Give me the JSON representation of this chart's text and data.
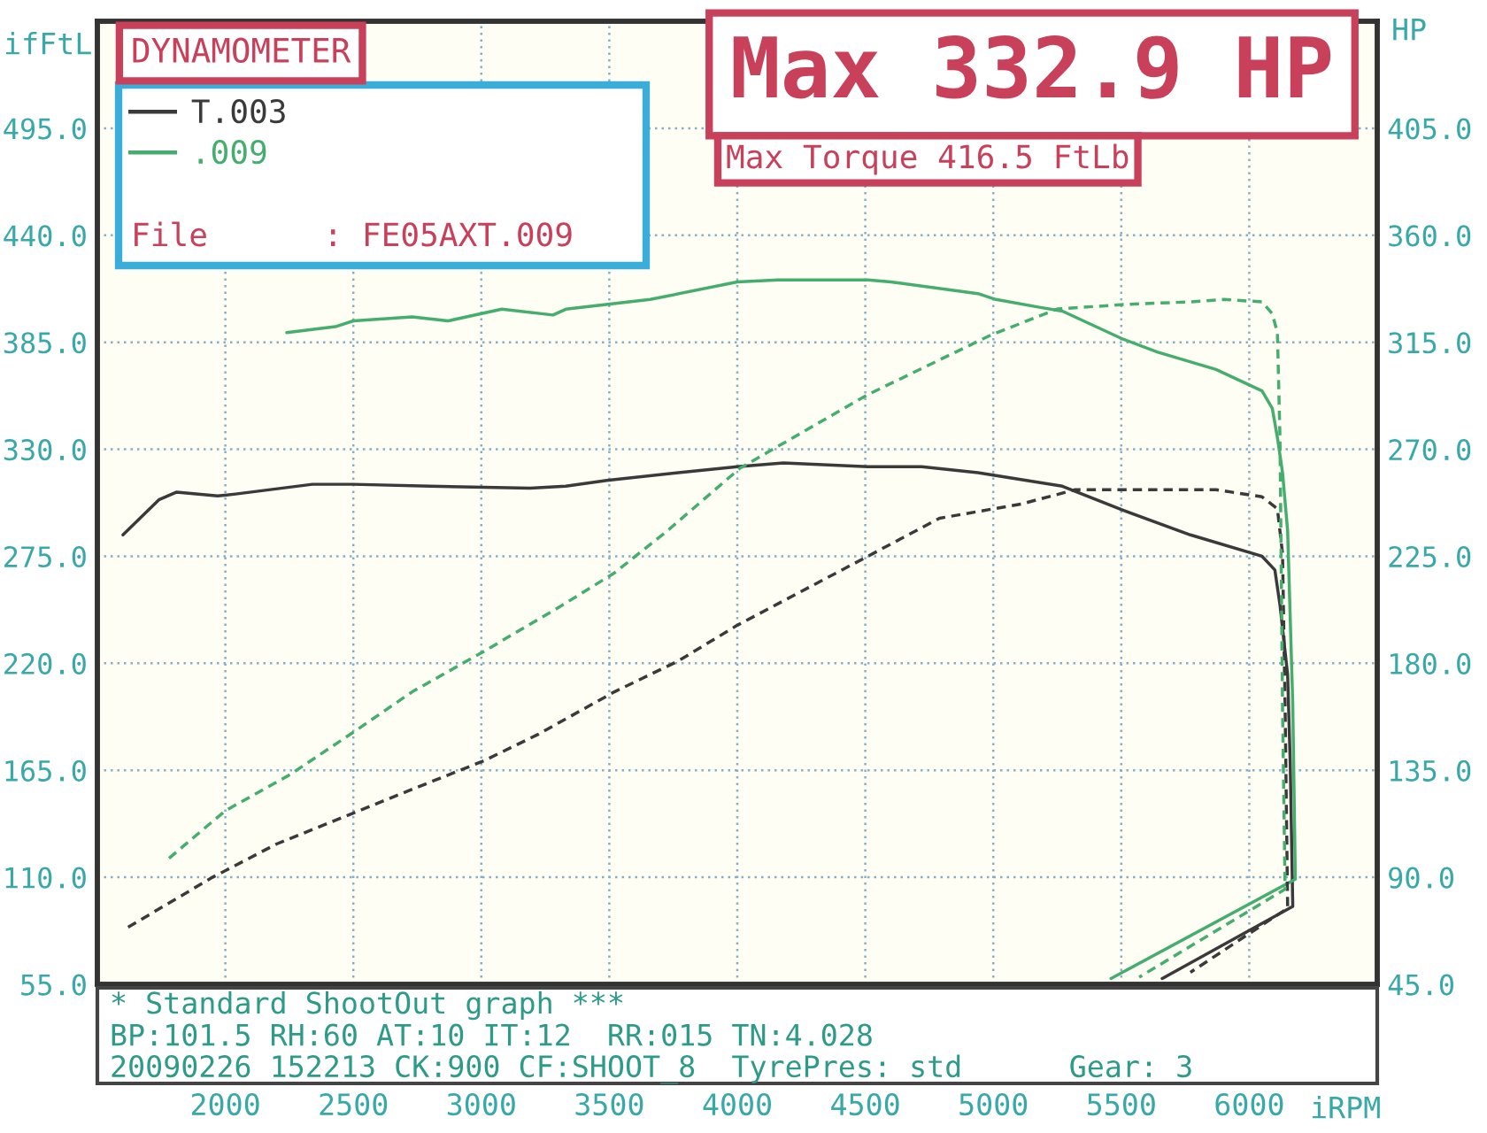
{
  "chart_data": {
    "type": "line",
    "title": "DYNAMOMETER",
    "xlabel": "iRPM",
    "ylabel": "ifFtL",
    "y2label": "HP",
    "xlim": [
      1500,
      6500
    ],
    "xticks": [
      2000,
      2500,
      3000,
      3500,
      4000,
      4500,
      5000,
      5500,
      6000
    ],
    "ylim": [
      55,
      550
    ],
    "yticks": [
      {
        "value": 55,
        "label": "55.0"
      },
      {
        "value": 110,
        "label": "110.0"
      },
      {
        "value": 165,
        "label": "165.0"
      },
      {
        "value": 220,
        "label": "220.0"
      },
      {
        "value": 275,
        "label": "275.0"
      },
      {
        "value": 330,
        "label": "330.0"
      },
      {
        "value": 385,
        "label": "385.0"
      },
      {
        "value": 440,
        "label": "440.0"
      },
      {
        "value": 495,
        "label": "495.0"
      }
    ],
    "y2lim": [
      45,
      450
    ],
    "y2ticks": [
      {
        "value": 45,
        "label": "45.0"
      },
      {
        "value": 90,
        "label": "90.0"
      },
      {
        "value": 135,
        "label": "135.0"
      },
      {
        "value": 180,
        "label": "180.0"
      },
      {
        "value": 225,
        "label": "225.0"
      },
      {
        "value": 270,
        "label": "270.0"
      },
      {
        "value": 315,
        "label": "315.0"
      },
      {
        "value": 360,
        "label": "360.0"
      },
      {
        "value": 405,
        "label": "405.0"
      }
    ],
    "grid": true,
    "legend": "top left",
    "annotations": [
      "Max 332.9 HP",
      "Max Torque 416.5 FtLb",
      "File      : FE05AXT.009",
      "* Standard ShootOut graph ***",
      "BP:101.5 RH:60 AT:10 IT:12  RR:015 TN:4.028",
      "20090226 152213 CK:900 CF:SHOOT_8  TyrePres: std      Gear: 3"
    ],
    "series": [
      {
        "name": "T.003",
        "color": "#3a3a3a",
        "line_style": "solid",
        "x": [
          1600,
          1740,
          1810,
          1970,
          2040,
          2340,
          2500,
          2800,
          3190,
          3330,
          3490,
          3770,
          4000,
          4180,
          4510,
          4720,
          4940,
          5270,
          5500,
          5770,
          6050,
          6100,
          6120,
          6150,
          6160,
          6170,
          5660
        ],
        "values": [
          286,
          304,
          308,
          306,
          307,
          312,
          312,
          311,
          310,
          311,
          314,
          318,
          321,
          323,
          321,
          321,
          318,
          311,
          299,
          286,
          275,
          268,
          250,
          214,
          169,
          95,
          58
        ]
      },
      {
        "color": "#3a3a3a",
        "axis": "y2",
        "line_style": "dashed",
        "x": [
          1620,
          1950,
          2200,
          2500,
          2730,
          3010,
          3220,
          3520,
          3770,
          4000,
          4510,
          4790,
          5110,
          5320,
          5870,
          6050,
          6110,
          6130,
          6140,
          6150,
          5770
        ],
        "values": [
          69,
          90,
          104,
          117,
          127,
          139,
          150,
          168,
          181,
          196,
          225,
          241,
          247,
          253,
          253,
          250,
          245,
          226,
          162,
          77,
          50
        ]
      },
      {
        "name": ".009",
        "color": "#45ad6e",
        "line_style": "solid",
        "x": [
          2240,
          2430,
          2500,
          2730,
          2870,
          3080,
          3280,
          3330,
          3660,
          4000,
          4160,
          4510,
          4600,
          4940,
          5010,
          5180,
          5270,
          5500,
          5640,
          5870,
          6050,
          6090,
          6110,
          6130,
          6150,
          6170,
          6180,
          5460
        ],
        "values": [
          390,
          393,
          396,
          398,
          396,
          402,
          399,
          402,
          407,
          416,
          417,
          417,
          416,
          410,
          407,
          403,
          401,
          387,
          380,
          371,
          360,
          351,
          336,
          318,
          288,
          199,
          109,
          58
        ]
      },
      {
        "color": "#45ad6e",
        "axis": "y2",
        "line_style": "dashed",
        "x": [
          1780,
          2000,
          2250,
          2500,
          2730,
          3010,
          3310,
          3520,
          3730,
          4010,
          4510,
          4990,
          5250,
          5530,
          5770,
          5900,
          6050,
          6090,
          6110,
          6120,
          6130,
          6140,
          5570
        ],
        "values": [
          98,
          118,
          133,
          151,
          168,
          185,
          204,
          218,
          236,
          262,
          293,
          318,
          329,
          331,
          332,
          333,
          332,
          327,
          319,
          275,
          162,
          85,
          48
        ]
      }
    ]
  }
}
